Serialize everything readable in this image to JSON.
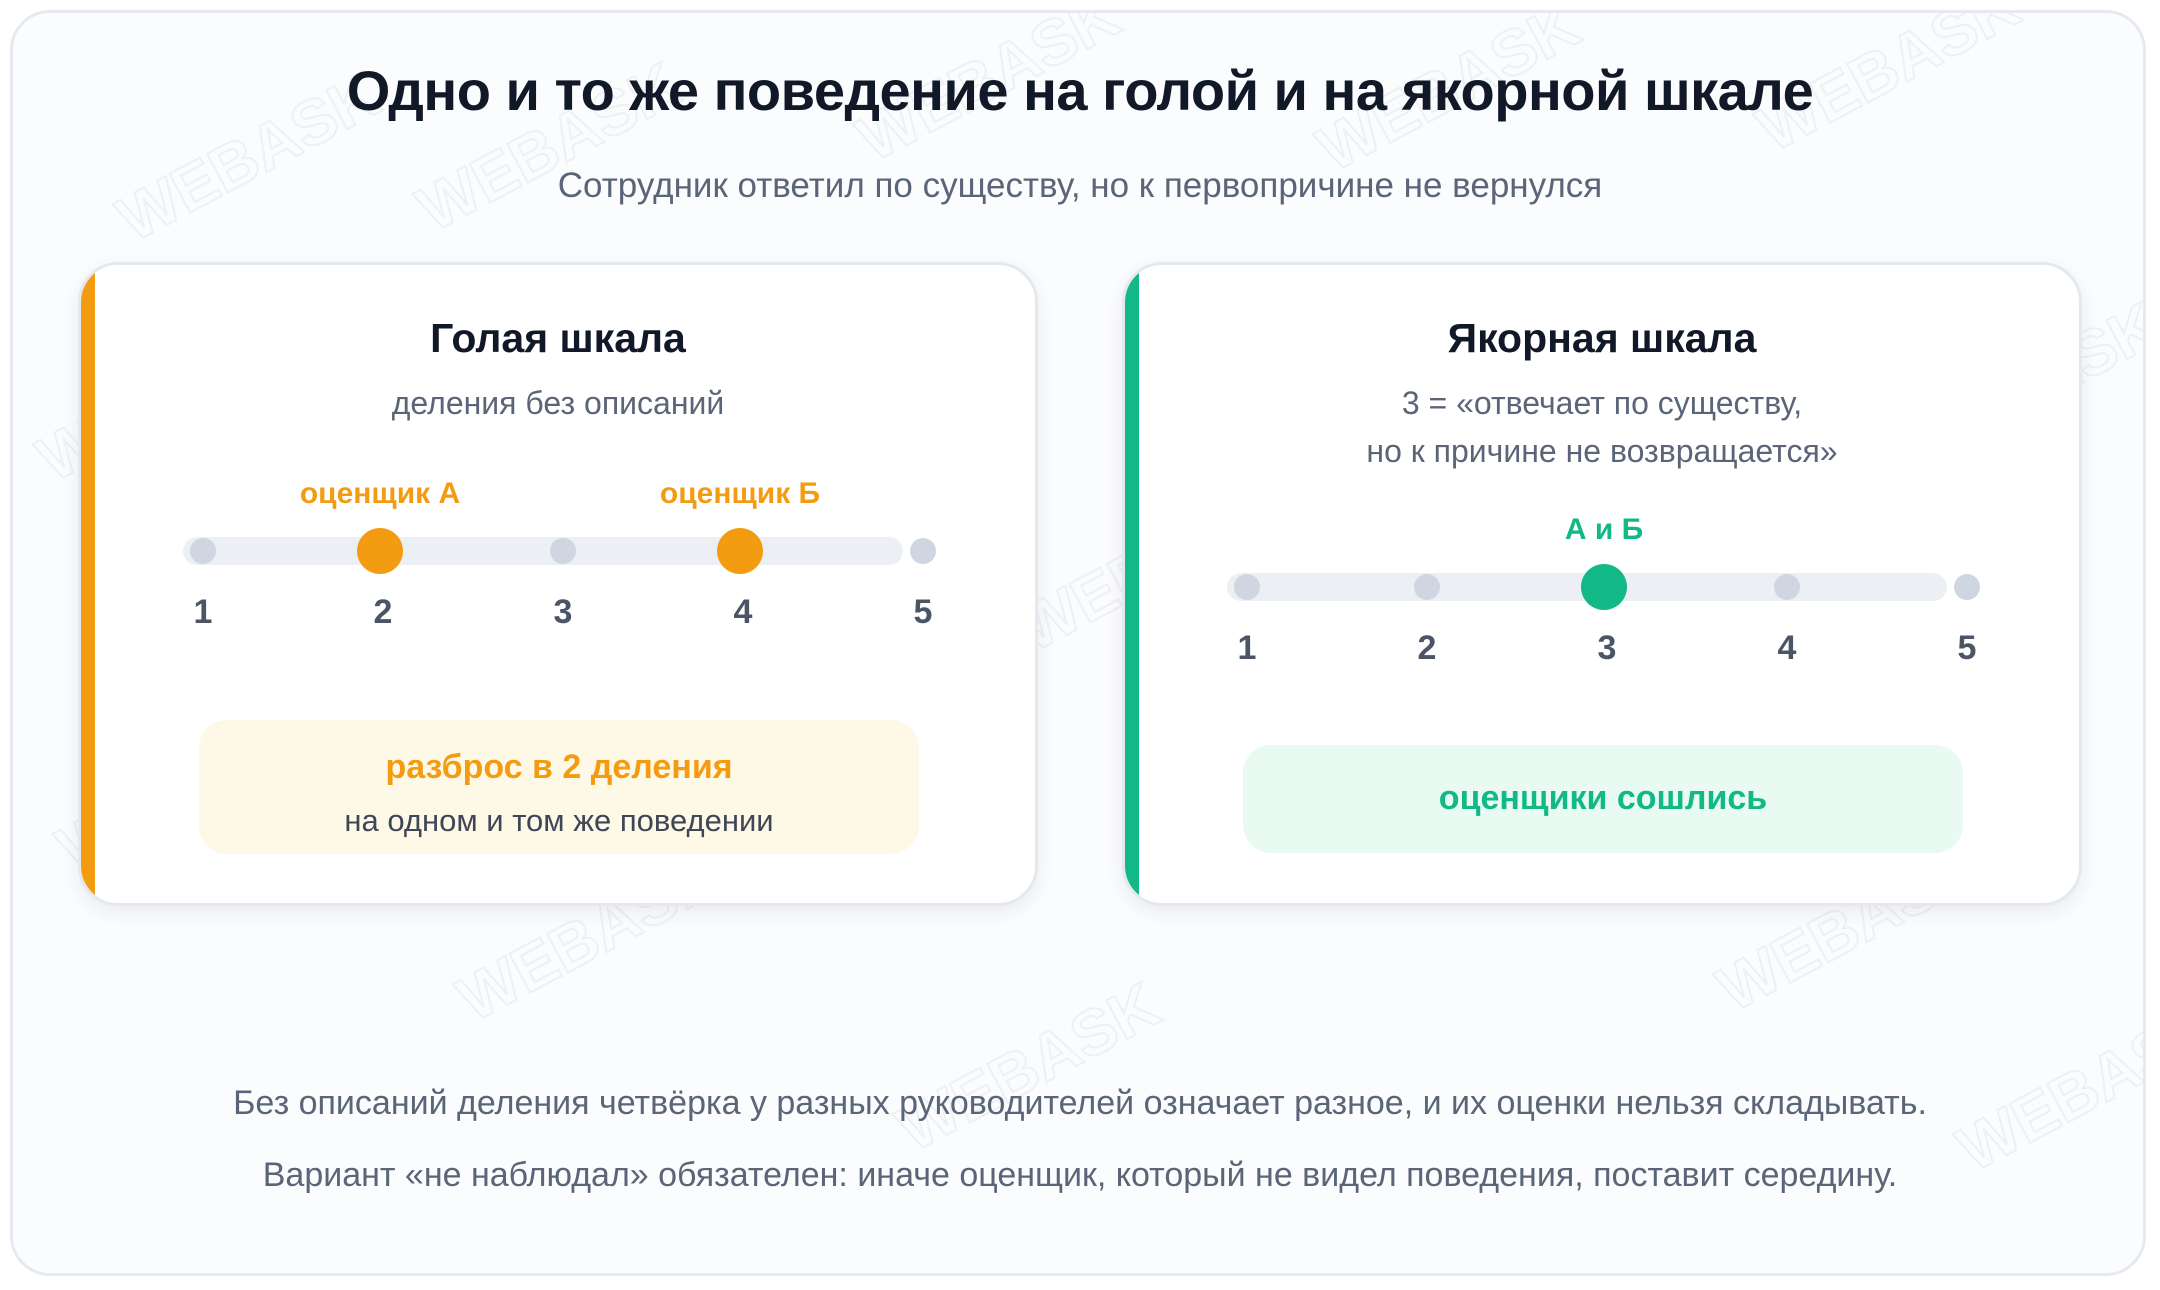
{
  "title": "Одно и то же поведение на голой и на якорной шкале",
  "subtitle": "Сотрудник ответил по существу, но к первопричине не вернулся",
  "watermark": "WEBASK",
  "colors": {
    "orange": "#f39c12",
    "green": "#12b886",
    "orange_bg": "#fef9e7",
    "green_bg": "#e8faf2"
  },
  "left_card": {
    "title": "Голая шкала",
    "subtitle": "деления без описаний",
    "scale": [
      "1",
      "2",
      "3",
      "4",
      "5"
    ],
    "rater_a": {
      "label": "оценщик А",
      "value": 2
    },
    "rater_b": {
      "label": "оценщик Б",
      "value": 4
    },
    "result_title": "разброс в 2 деления",
    "result_sub": "на одном и том же поведении"
  },
  "right_card": {
    "title": "Якорная шкала",
    "subtitle_line1": "3 = «отвечает по существу,",
    "subtitle_line2": "но к причине не возвращается»",
    "scale": [
      "1",
      "2",
      "3",
      "4",
      "5"
    ],
    "raters": {
      "label": "А и Б",
      "value": 3
    },
    "result_title": "оценщики сошлись"
  },
  "footer": {
    "line1": "Без описаний деления четвёрка у разных руководителей означает разное, и их оценки нельзя складывать.",
    "line2": "Вариант «не наблюдал» обязателен: иначе оценщик, который не видел поведения, поставит середину."
  }
}
